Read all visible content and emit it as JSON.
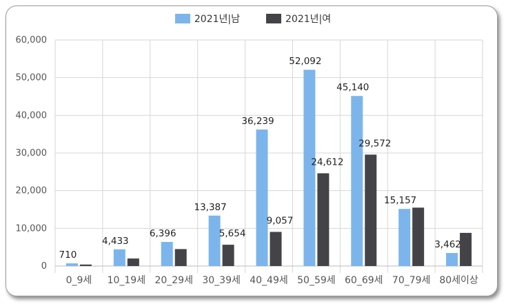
{
  "chart_data": {
    "type": "bar",
    "categories": [
      "0_9세",
      "10_19세",
      "20_29세",
      "30_39세",
      "40_49세",
      "50_59세",
      "60_69세",
      "70_79세",
      "80세이상"
    ],
    "series": [
      {
        "name": "2021년|남",
        "color": "#7cb5ec",
        "values": [
          710,
          4433,
          6396,
          13387,
          36239,
          52092,
          45140,
          15157,
          3462
        ]
      },
      {
        "name": "2021년|여",
        "color": "#434348",
        "values": [
          400,
          2000,
          4500,
          5654,
          9057,
          24612,
          29572,
          15500,
          8800
        ]
      }
    ],
    "data_labels": [
      [
        "710",
        "4,433",
        "6,396",
        "13,387",
        "36,239",
        "52,092",
        "45,140",
        "15,157",
        "3,462"
      ],
      [
        "",
        "",
        "",
        "5,654",
        "9,057",
        "24,612",
        "29,572",
        "",
        ""
      ]
    ],
    "y_ticks": [
      "0",
      "10,000",
      "20,000",
      "30,000",
      "40,000",
      "50,000",
      "60,000"
    ],
    "ylim": [
      0,
      60000
    ],
    "grid": true,
    "legend_position": "top-center"
  }
}
